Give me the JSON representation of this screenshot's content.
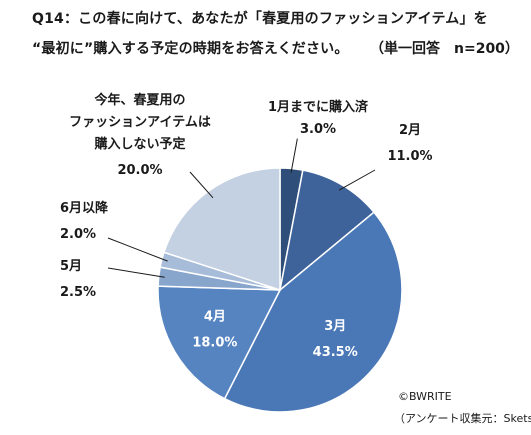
{
  "header": {
    "title_line1": "Q14：この春に向けて、あなたが「春夏用のファッションアイテム」を",
    "title_line2": "“最初に”購入する予定の時期をお答えください。",
    "sample_note": "（単一回答　n=200）"
  },
  "chart_data": {
    "type": "pie",
    "slices": [
      {
        "label": "1月までに購入済",
        "value": 3.0,
        "value_text": "3.0%",
        "color": "#2f4f7a"
      },
      {
        "label": "2月",
        "value": 11.0,
        "value_text": "11.0%",
        "color": "#3e639a"
      },
      {
        "label": "3月",
        "value": 43.5,
        "value_text": "43.5%",
        "color": "#4a77b6"
      },
      {
        "label": "4月",
        "value": 18.0,
        "value_text": "18.0%",
        "color": "#5684c1"
      },
      {
        "label": "5月",
        "value": 2.5,
        "value_text": "2.5%",
        "color": "#88a5cc"
      },
      {
        "label": "6月以降",
        "value": 2.0,
        "value_text": "2.0%",
        "color": "#a7bcd8"
      },
      {
        "label_lines": [
          "今年、春夏用の",
          "ファッションアイテムは",
          "購入しない予定"
        ],
        "value": 20.0,
        "value_text": "20.0%",
        "color": "#c4d1e2"
      }
    ]
  },
  "footer": {
    "copyright": "©BWRITE",
    "source": "（アンケート収集元：Skets）"
  }
}
